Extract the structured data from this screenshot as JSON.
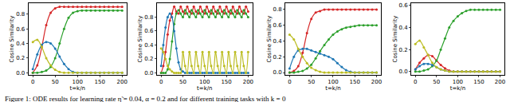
{
  "caption": "Figure 1: ODE results for learning rate η̃ = 0.04, α = 0.2 and for different training tasks with k = 0",
  "chart_data": [
    {
      "type": "line",
      "x_label": "t=k/n",
      "y_label": "Cosine Similarity",
      "x": [
        0,
        10,
        20,
        30,
        40,
        50,
        60,
        70,
        80,
        90,
        100,
        110,
        120,
        130,
        140,
        150,
        160,
        170,
        180,
        190,
        200
      ],
      "xlim": [
        -10,
        210
      ],
      "xticks": [
        0,
        50,
        100,
        150,
        200
      ],
      "ylim": [
        -0.03,
        0.95
      ],
      "yticks": [
        {
          "value": 0,
          "label": "0.0"
        },
        {
          "value": 0.2,
          "label": "0.2"
        },
        {
          "value": 0.4,
          "label": "0.4"
        },
        {
          "value": 0.6,
          "label": "0.6"
        },
        {
          "value": 0.8,
          "label": "0.8"
        }
      ],
      "series": [
        {
          "color": "#d62728",
          "marker": "circle",
          "values": [
            0,
            0.1,
            0.35,
            0.65,
            0.82,
            0.88,
            0.9,
            0.9,
            0.9,
            0.9,
            0.9,
            0.9,
            0.9,
            0.9,
            0.9,
            0.9,
            0.9,
            0.9,
            0.9,
            0.9,
            0.9
          ]
        },
        {
          "color": "#2ca02c",
          "marker": "circle",
          "values": [
            0,
            0,
            0.01,
            0.03,
            0.08,
            0.2,
            0.4,
            0.6,
            0.75,
            0.82,
            0.84,
            0.85,
            0.85,
            0.85,
            0.85,
            0.85,
            0.85,
            0.85,
            0.85,
            0.85,
            0.85
          ]
        },
        {
          "color": "#1f77b4",
          "marker": "circle",
          "values": [
            0.05,
            0.25,
            0.38,
            0.42,
            0.4,
            0.33,
            0.22,
            0.12,
            0.05,
            0.01,
            0,
            0,
            0,
            0,
            0,
            0,
            0,
            0,
            0,
            0,
            0
          ]
        },
        {
          "color": "#bcbd22",
          "marker": "circle",
          "values": [
            0.42,
            0.45,
            0.35,
            0.2,
            0.1,
            0.04,
            0.01,
            0,
            0,
            0,
            0,
            0,
            0,
            0,
            0,
            0,
            0,
            0,
            0,
            0,
            0
          ]
        }
      ]
    },
    {
      "type": "line",
      "x_label": "t=k/n",
      "y_label": "Cosine Similarity",
      "x": [
        0,
        5,
        10,
        15,
        20,
        25,
        30,
        35,
        40,
        45,
        50,
        55,
        60,
        65,
        70,
        75,
        80,
        85,
        90,
        95,
        100,
        105,
        110,
        115,
        120,
        125,
        130,
        135,
        140,
        145,
        150,
        155,
        160,
        165,
        170,
        175,
        180,
        185,
        190,
        195,
        200
      ],
      "xlim": [
        -10,
        210
      ],
      "xticks": [
        0,
        50,
        100,
        150,
        200
      ],
      "ylim": [
        -0.03,
        1.0
      ],
      "yticks": [
        {
          "value": 0,
          "label": "0.0"
        },
        {
          "value": 0.2,
          "label": "0.2"
        },
        {
          "value": 0.4,
          "label": "0.4"
        },
        {
          "value": 0.6,
          "label": "0.6"
        },
        {
          "value": 0.8,
          "label": "0.8"
        }
      ],
      "series": [
        {
          "color": "#d62728",
          "marker": "circle",
          "values": [
            0,
            0.1,
            0.3,
            0.55,
            0.75,
            0.85,
            0.95,
            0.88,
            0.85,
            0.95,
            0.88,
            0.85,
            0.95,
            0.88,
            0.85,
            0.95,
            0.88,
            0.85,
            0.95,
            0.88,
            0.85,
            0.95,
            0.88,
            0.85,
            0.95,
            0.88,
            0.85,
            0.95,
            0.88,
            0.85,
            0.95,
            0.88,
            0.85,
            0.95,
            0.88,
            0.85,
            0.95,
            0.88,
            0.85,
            0.95,
            0.88
          ]
        },
        {
          "color": "#2ca02c",
          "marker": "circle",
          "values": [
            0,
            0,
            0,
            0.05,
            0.2,
            0.45,
            0.7,
            0.85,
            0.9,
            0.85,
            0.8,
            0.9,
            0.85,
            0.8,
            0.9,
            0.85,
            0.8,
            0.9,
            0.85,
            0.8,
            0.9,
            0.85,
            0.8,
            0.9,
            0.85,
            0.8,
            0.9,
            0.85,
            0.8,
            0.9,
            0.85,
            0.8,
            0.9,
            0.85,
            0.8,
            0.9,
            0.85,
            0.8,
            0.9,
            0.85,
            0.8
          ]
        },
        {
          "color": "#1f77b4",
          "marker": "circle",
          "values": [
            0.1,
            0.4,
            0.65,
            0.8,
            0.85,
            0.8,
            0.6,
            0.35,
            0.15,
            0.05,
            0.02,
            0,
            0,
            0,
            0,
            0,
            0,
            0,
            0,
            0,
            0,
            0,
            0,
            0,
            0,
            0,
            0,
            0,
            0,
            0,
            0,
            0,
            0,
            0,
            0,
            0,
            0,
            0,
            0,
            0,
            0
          ]
        },
        {
          "color": "#bcbd22",
          "marker": "circle",
          "values": [
            0.35,
            0.3,
            0.2,
            0.1,
            0.05,
            0.02,
            0,
            0,
            0,
            0,
            0.3,
            0.1,
            0,
            0.3,
            0.1,
            0,
            0.3,
            0.1,
            0,
            0.3,
            0.1,
            0,
            0.3,
            0.1,
            0,
            0.3,
            0.1,
            0,
            0.3,
            0.1,
            0,
            0.3,
            0.1,
            0,
            0.3,
            0.1,
            0,
            0.3,
            0.1,
            0,
            0.3
          ]
        }
      ]
    },
    {
      "type": "line",
      "x_label": "t=k/n",
      "y_label": "Cosine Similarity",
      "x": [
        0,
        10,
        20,
        30,
        40,
        50,
        60,
        70,
        80,
        90,
        100,
        110,
        120,
        130,
        140,
        150,
        160,
        170,
        180,
        190,
        200
      ],
      "xlim": [
        -10,
        210
      ],
      "xticks": [
        0,
        50,
        100,
        150,
        200
      ],
      "ylim": [
        -0.03,
        0.88
      ],
      "yticks": [
        {
          "value": 0,
          "label": "0.0"
        },
        {
          "value": 0.2,
          "label": "0.2"
        },
        {
          "value": 0.4,
          "label": "0.4"
        },
        {
          "value": 0.6,
          "label": "0.6"
        },
        {
          "value": 0.8,
          "label": "0.8"
        }
      ],
      "series": [
        {
          "color": "#d62728",
          "marker": "circle",
          "values": [
            0,
            0.02,
            0.08,
            0.25,
            0.5,
            0.68,
            0.76,
            0.78,
            0.8,
            0.8,
            0.8,
            0.8,
            0.8,
            0.8,
            0.8,
            0.8,
            0.8,
            0.8,
            0.8,
            0.8,
            0.8
          ]
        },
        {
          "color": "#2ca02c",
          "marker": "circle",
          "values": [
            0,
            0,
            0.01,
            0.02,
            0.05,
            0.1,
            0.18,
            0.27,
            0.35,
            0.42,
            0.48,
            0.52,
            0.55,
            0.57,
            0.58,
            0.59,
            0.6,
            0.6,
            0.6,
            0.6,
            0.6
          ]
        },
        {
          "color": "#1f77b4",
          "marker": "circle",
          "values": [
            0.05,
            0.2,
            0.28,
            0.3,
            0.3,
            0.28,
            0.26,
            0.24,
            0.22,
            0.2,
            0.17,
            0.12,
            0.07,
            0.03,
            0.01,
            0,
            0,
            0,
            0,
            0,
            0
          ]
        },
        {
          "color": "#bcbd22",
          "marker": "circle",
          "values": [
            0.48,
            0.42,
            0.3,
            0.2,
            0.12,
            0.06,
            0.03,
            0.01,
            0,
            0,
            0,
            0,
            0,
            0,
            0,
            0,
            0,
            0,
            0,
            0,
            0
          ]
        }
      ]
    },
    {
      "type": "line",
      "x_label": "t=k/n",
      "y_label": "Cosine Similarity",
      "x": [
        0,
        10,
        20,
        30,
        40,
        50,
        60,
        70,
        80,
        90,
        100,
        110,
        120,
        130,
        140,
        150,
        160,
        170,
        180,
        190,
        200
      ],
      "xlim": [
        -10,
        210
      ],
      "xticks": [
        0,
        50,
        100,
        150,
        200
      ],
      "ylim": [
        -0.03,
        0.62
      ],
      "yticks": [
        {
          "value": 0,
          "label": "0.0"
        },
        {
          "value": 0.2,
          "label": "0.2"
        },
        {
          "value": 0.4,
          "label": "0.4"
        },
        {
          "value": 0.6,
          "label": "0.6"
        }
      ],
      "series": [
        {
          "color": "#d62728",
          "marker": "circle",
          "values": [
            0.02,
            0.08,
            0.12,
            0.15,
            0.14,
            0.1,
            0.06,
            0.03,
            0.01,
            0,
            0,
            0,
            0,
            0,
            0,
            0,
            0,
            0,
            0,
            0,
            0
          ]
        },
        {
          "color": "#2ca02c",
          "marker": "circle",
          "values": [
            0,
            0,
            0.01,
            0.02,
            0.05,
            0.1,
            0.2,
            0.3,
            0.4,
            0.46,
            0.5,
            0.53,
            0.55,
            0.56,
            0.56,
            0.56,
            0.56,
            0.56,
            0.56,
            0.56,
            0.56
          ]
        },
        {
          "color": "#1f77b4",
          "marker": "circle",
          "values": [
            0.02,
            0.05,
            0.07,
            0.07,
            0.06,
            0.04,
            0.02,
            0.01,
            0,
            0,
            0,
            0,
            0,
            0,
            0,
            0,
            0,
            0,
            0,
            0,
            0
          ]
        },
        {
          "color": "#bcbd22",
          "marker": "circle",
          "values": [
            0.25,
            0.28,
            0.22,
            0.15,
            0.08,
            0.04,
            0.02,
            0.01,
            0,
            0,
            0,
            0,
            0,
            0,
            0,
            0,
            0,
            0,
            0,
            0,
            0
          ]
        }
      ]
    }
  ]
}
